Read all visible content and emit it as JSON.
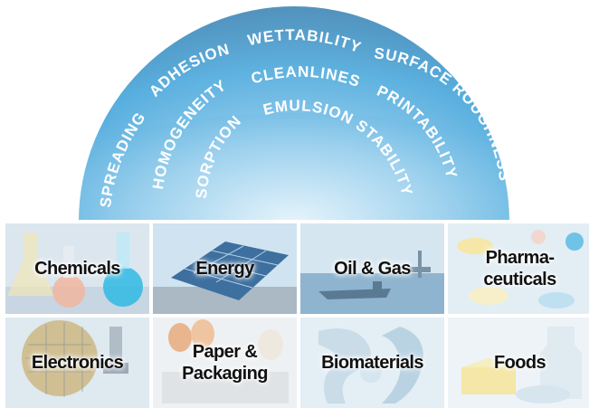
{
  "properties": [
    "WETTABILITY",
    "ADHESION",
    "SURFACE ROUGHNESS",
    "SPREADING",
    "HOMOGENEITY",
    "CLEANLINESS",
    "PRINTABILITY",
    "SORPTION",
    "EMULSION STABILITY"
  ],
  "industries": [
    {
      "label": "Chemicals",
      "icon": "chemicals-flasks-icon"
    },
    {
      "label": "Energy",
      "icon": "solar-panel-icon"
    },
    {
      "label": "Oil & Gas",
      "icon": "oil-tanker-icon"
    },
    {
      "label": "Pharma-\nceuticals",
      "icon": "pills-icon"
    },
    {
      "label": "Electronics",
      "icon": "circuit-board-icon"
    },
    {
      "label": "Paper &\nPackaging",
      "icon": "eggs-carton-icon"
    },
    {
      "label": "Biomaterials",
      "icon": "hip-joint-icon"
    },
    {
      "label": "Foods",
      "icon": "dairy-food-icon"
    }
  ],
  "colors": {
    "dome_light": "#e6f4fb",
    "dome_mid": "#4aa8dc",
    "dome_dark": "#1b6fa8",
    "text": "#ffffff"
  }
}
